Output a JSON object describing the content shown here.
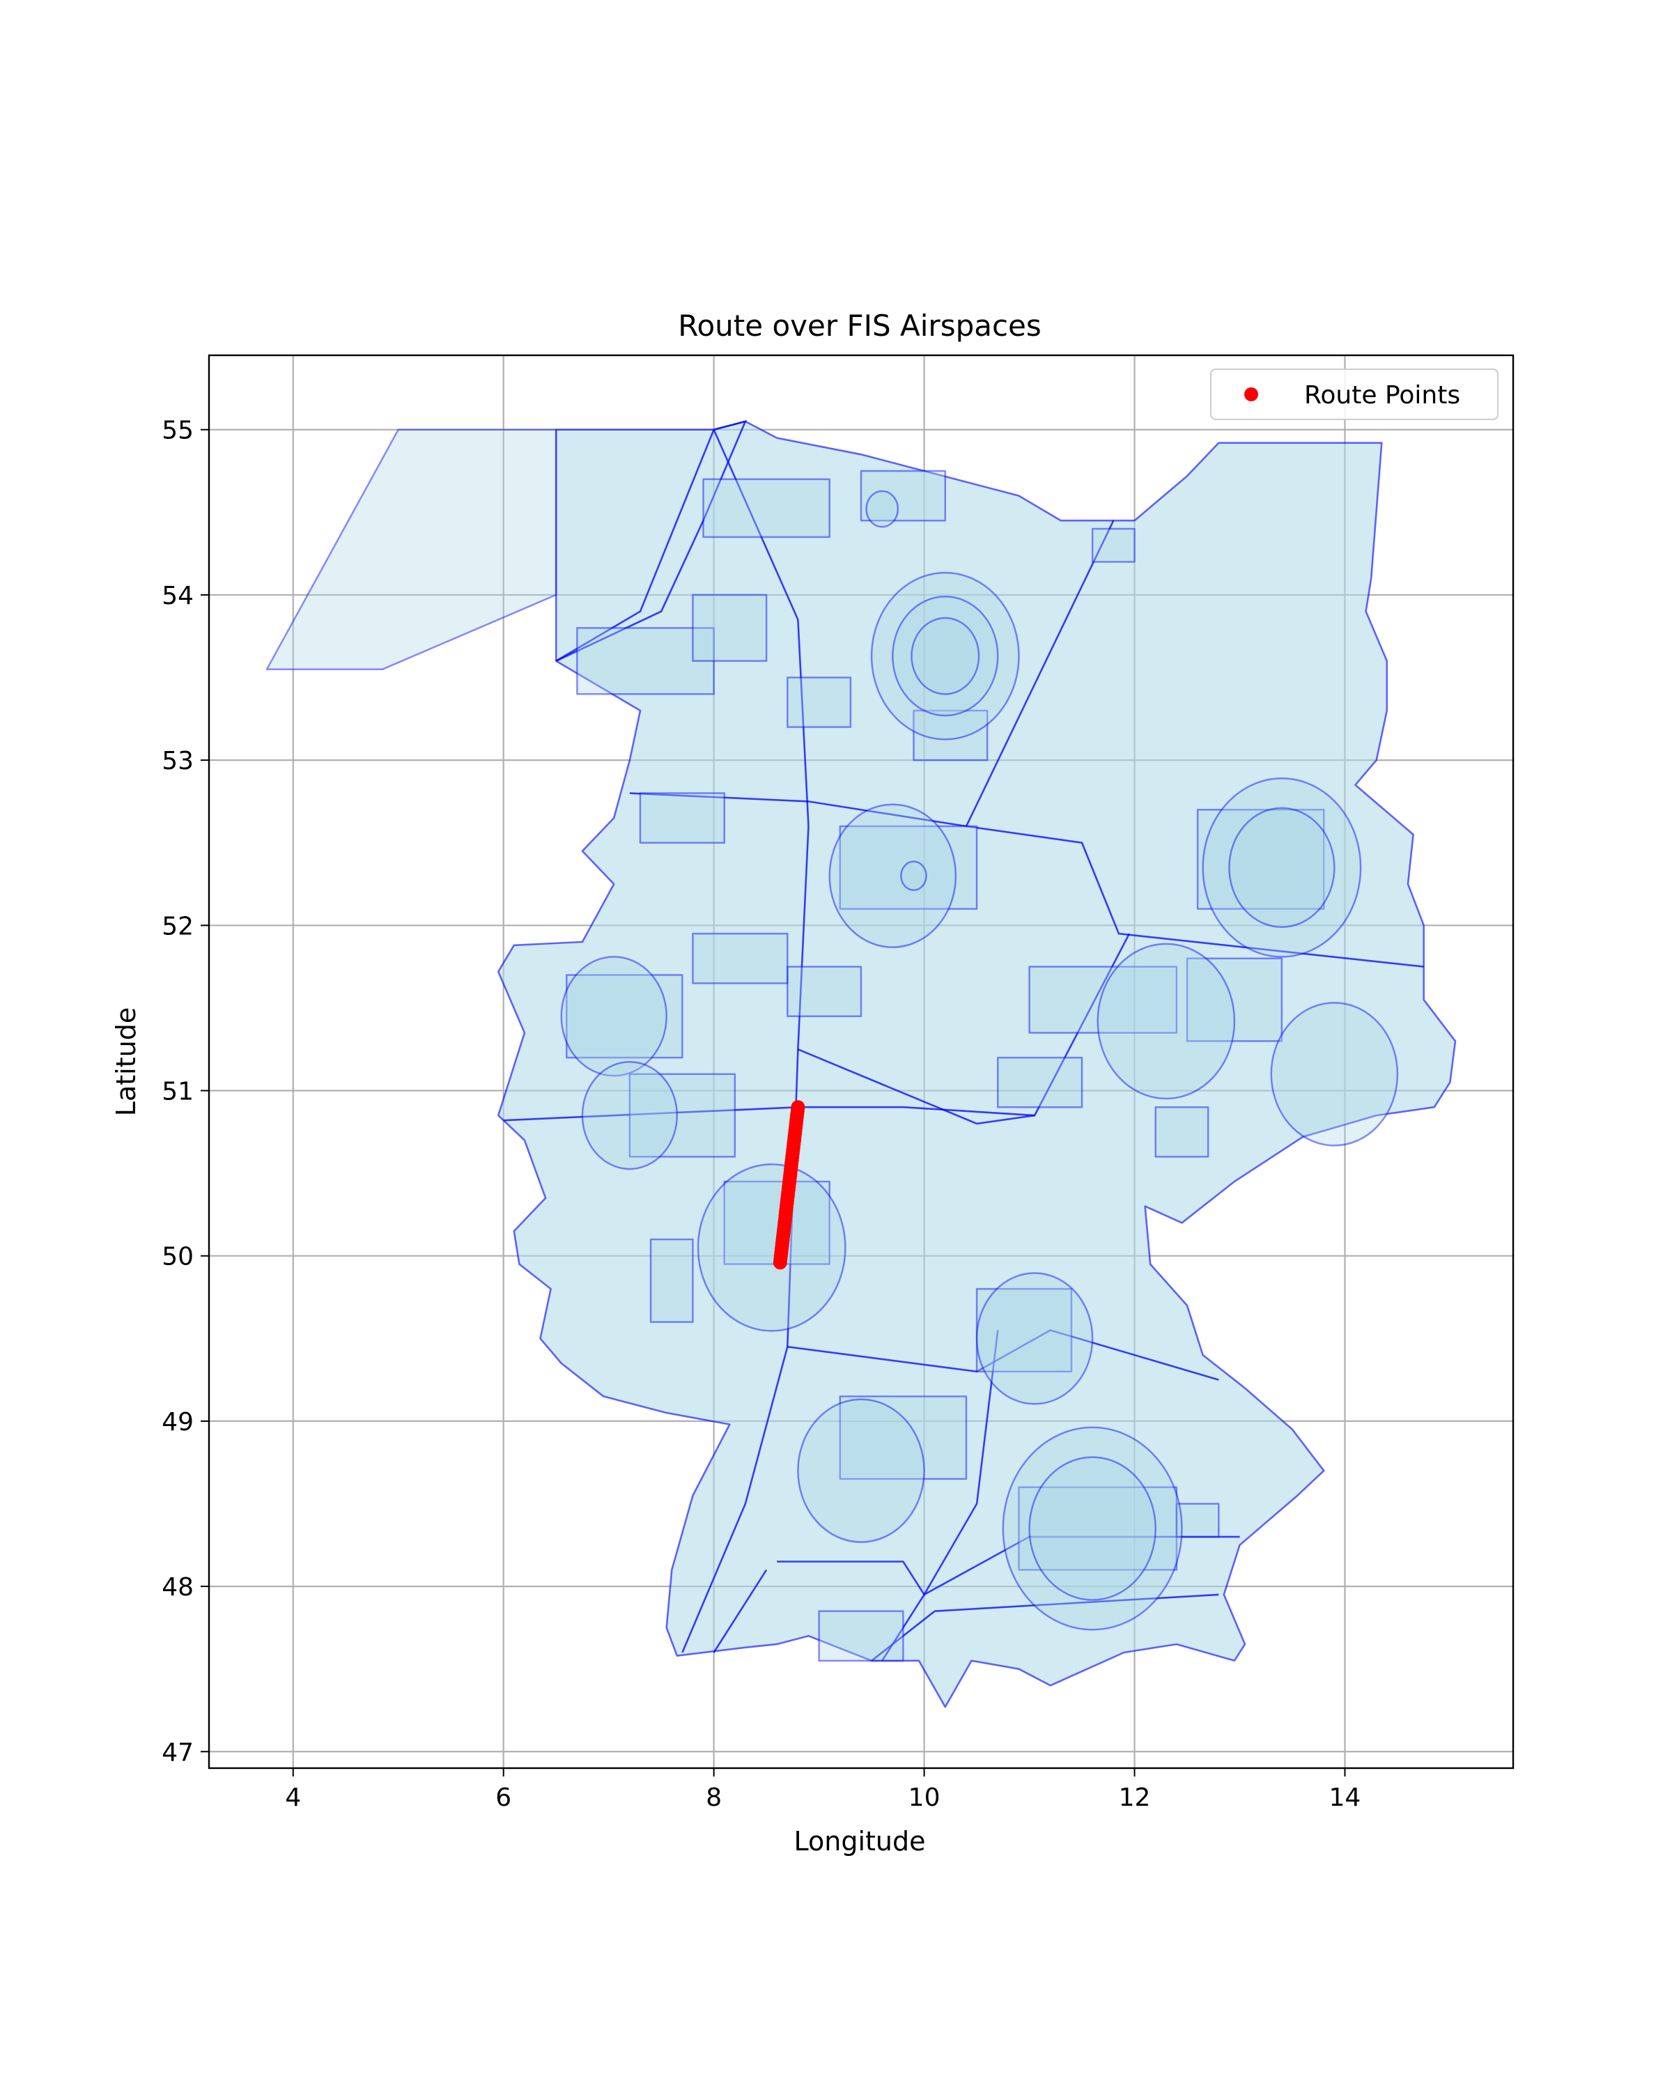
{
  "chart_data": {
    "type": "scatter",
    "title": "Route over FIS Airspaces",
    "xlabel": "Longitude",
    "ylabel": "Latitude",
    "xlim": [
      3.2,
      15.6
    ],
    "ylim": [
      46.9,
      55.45
    ],
    "xticks": [
      4,
      6,
      8,
      10,
      12,
      14
    ],
    "yticks": [
      47,
      48,
      49,
      50,
      51,
      52,
      53,
      54,
      55
    ],
    "grid": true,
    "legend": {
      "position": "upper right",
      "entries": [
        "Route Points"
      ]
    },
    "series": [
      {
        "name": "Route Points",
        "color": "#ff0000",
        "marker": "circle",
        "start": {
          "lon": 8.63,
          "lat": 49.96
        },
        "end": {
          "lon": 8.8,
          "lat": 50.9
        },
        "count": 48
      }
    ],
    "airspace_fill": "#add8e6",
    "airspace_edge": "#0000ff"
  }
}
